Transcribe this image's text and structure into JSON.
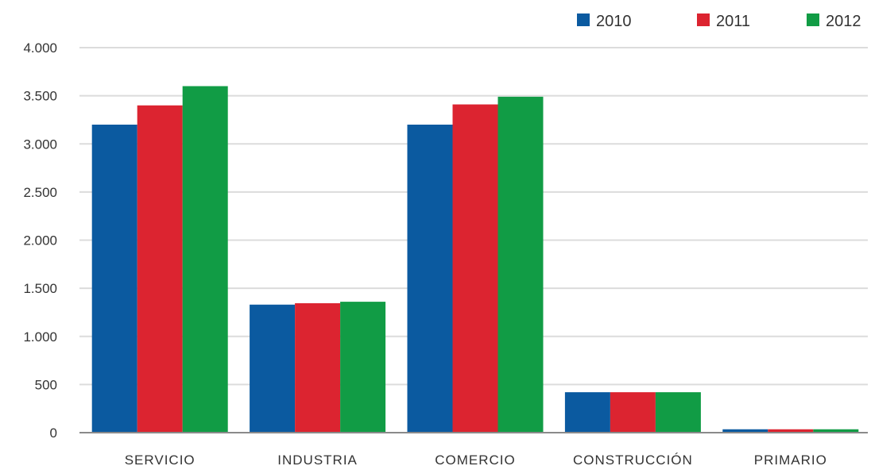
{
  "chart_data": {
    "type": "bar",
    "title": "",
    "xlabel": "",
    "ylabel": "",
    "categories": [
      "SERVICIO",
      "INDUSTRIA",
      "COMERCIO",
      "CONSTRUCCIÓN",
      "PRIMARIO"
    ],
    "series": [
      {
        "name": "2010",
        "color": "#0b5aa0",
        "values": [
          3200,
          1330,
          3200,
          420,
          35
        ]
      },
      {
        "name": "2011",
        "color": "#dc2430",
        "values": [
          3400,
          1345,
          3410,
          420,
          35
        ]
      },
      {
        "name": "2012",
        "color": "#119c45",
        "values": [
          3600,
          1360,
          3490,
          420,
          35
        ]
      }
    ],
    "ylim": [
      0,
      4000
    ],
    "yticks": [
      0,
      500,
      1000,
      1500,
      2000,
      2500,
      3000,
      3500,
      4000
    ],
    "ytick_labels": [
      "0",
      "500",
      "1.000",
      "1.500",
      "2.000",
      "2.500",
      "3.000",
      "3.500",
      "4.000"
    ],
    "grid": true,
    "legend_position": "top-right"
  }
}
